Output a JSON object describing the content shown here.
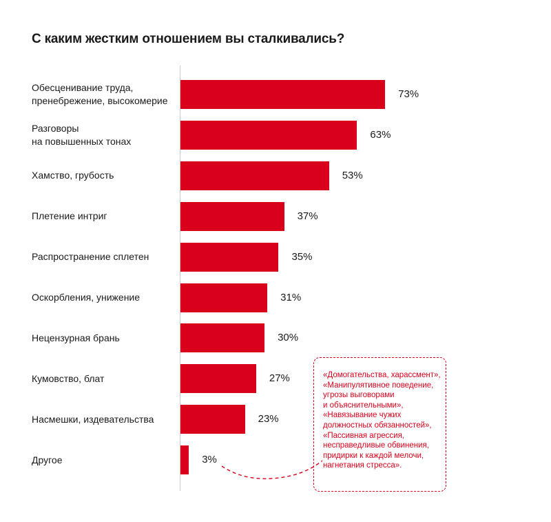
{
  "title": "С каким жестким отношением вы сталкивались?",
  "colors": {
    "bar": "#d9001b",
    "callout": "#d9001b",
    "text": "#1a1a1a",
    "axis": "#c8c8c8"
  },
  "chart_data": {
    "type": "bar",
    "orientation": "horizontal",
    "title": "С каким жестким отношением вы сталкивались?",
    "unit": "%",
    "xlim": [
      0,
      100
    ],
    "grid": false,
    "categories": [
      "Обесценивание труда,\nпренебрежение, высокомерие",
      "Разговоры\nна повышенных тонах",
      "Хамство, грубость",
      "Плетение интриг",
      "Распространение сплетен",
      "Оскорбления, унижение",
      "Нецензурная брань",
      "Кумовство, блат",
      "Насмешки, издевательства",
      "Другое"
    ],
    "values": [
      73,
      63,
      53,
      37,
      35,
      31,
      30,
      27,
      23,
      3
    ],
    "value_labels": [
      "73%",
      "63%",
      "53%",
      "37%",
      "35%",
      "31%",
      "30%",
      "27%",
      "23%",
      "3%"
    ],
    "annotation": "«Домогательства, харассмент»,\n«Манипулятивное поведение,\nугрозы выговорами\nи объяснительными»,\n«Навязывание чужих\nдолжностных обязанностей»,\n«Пассивная агрессия,\nнесправедливые обвинения,\nпридирки к каждой мелочи,\nнагнетания стресса»."
  }
}
